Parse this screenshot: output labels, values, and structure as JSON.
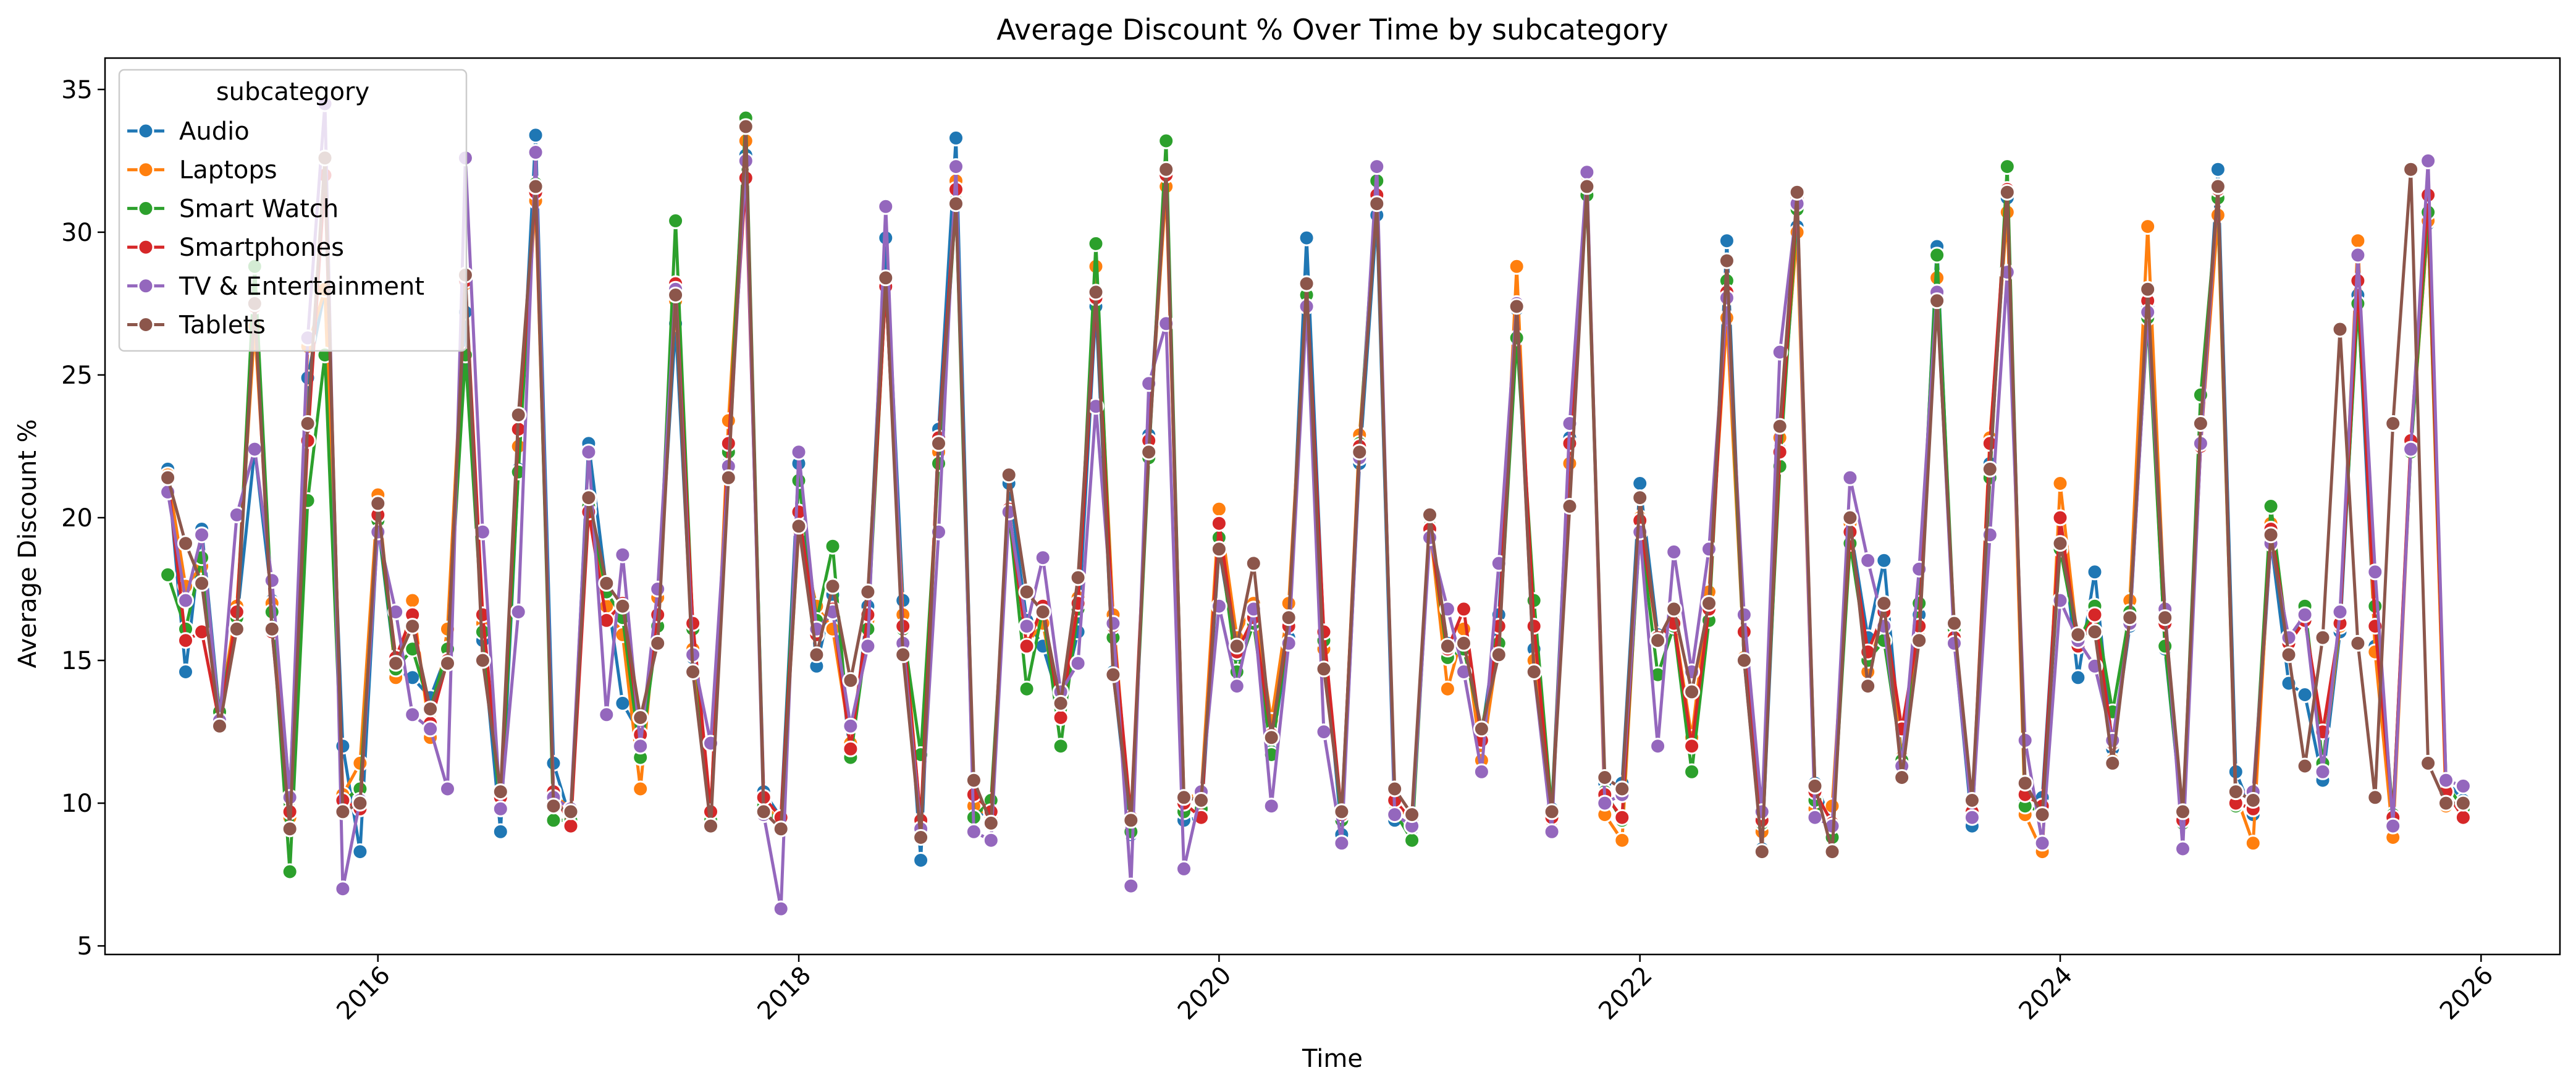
{
  "chart_data": {
    "type": "line",
    "title": "Average Discount % Over Time by subcategory",
    "xlabel": "Time",
    "ylabel": "Average Discount %",
    "xlim": [
      "2014-09-14",
      "2026-05-18"
    ],
    "ylim": [
      4.7,
      36.1
    ],
    "x_ticks": [
      "2016",
      "2018",
      "2020",
      "2022",
      "2024",
      "2026"
    ],
    "x_tick_dates": [
      "2016-01-01",
      "2018-01-01",
      "2020-01-01",
      "2022-01-01",
      "2024-01-01",
      "2026-01-01"
    ],
    "y_ticks": [
      5,
      10,
      15,
      20,
      25,
      30,
      35
    ],
    "grid": false,
    "legend": {
      "title": "subcategory",
      "position": "top-left"
    },
    "x_start": "2015-01",
    "x_interval": "monthly",
    "series": [
      {
        "name": "Audio",
        "color": "#1f77b4",
        "values": [
          21.7,
          14.6,
          19.6,
          13.1,
          16.4,
          22.4,
          17.1,
          10.3,
          24.9,
          28.0,
          12.0,
          8.3,
          19.8,
          14.6,
          14.4,
          13.7,
          15.3,
          27.2,
          15.7,
          9.0,
          21.7,
          33.4,
          11.4,
          9.4,
          22.6,
          17.5,
          13.5,
          12.4,
          16.6,
          26.8,
          15.1,
          9.5,
          21.9,
          32.7,
          10.4,
          9.5,
          21.9,
          14.8,
          17.3,
          11.6,
          16.9,
          29.8,
          17.1,
          8.0,
          23.1,
          33.3,
          10.0,
          9.3,
          21.2,
          16.4,
          15.5,
          13.4,
          16.0,
          27.4,
          14.6,
          8.9,
          22.9,
          32.1,
          9.4,
          9.5,
          18.9,
          15.2,
          16.5,
          11.8,
          15.8,
          29.8,
          15.8,
          8.9,
          21.9,
          30.6,
          9.4,
          9.1,
          19.5,
          15.6,
          15.6,
          12.4,
          16.6,
          27.3,
          15.4,
          9.8,
          22.8,
          31.5,
          10.7,
          10.7,
          21.2,
          15.9,
          16.1,
          12.0,
          16.4,
          29.7,
          15.0,
          8.4,
          22.4,
          30.2,
          10.7,
          9.3,
          19.7,
          15.8,
          18.5,
          11.5,
          16.6,
          29.5,
          15.7,
          9.2,
          21.9,
          31.2,
          10.1,
          10.2,
          20.0,
          14.4,
          18.1,
          11.9,
          16.2,
          27.4,
          15.4,
          9.3,
          22.6,
          32.2,
          11.1,
          9.6,
          19.2,
          14.2,
          13.8,
          10.8,
          16.0,
          27.8,
          15.5,
          9.5,
          22.6,
          30.3,
          10.8,
          10.1
        ]
      },
      {
        "name": "Laptops",
        "color": "#ff7f0e",
        "values": [
          21.5,
          17.6,
          18.3,
          13.2,
          16.9,
          26.7,
          17.0,
          9.5,
          26.0,
          28.0,
          10.3,
          11.4,
          20.8,
          14.4,
          17.1,
          12.3,
          16.1,
          28.2,
          16.3,
          10.2,
          22.5,
          31.1,
          10.3,
          9.8,
          20.6,
          16.9,
          15.9,
          10.5,
          17.2,
          27.6,
          15.4,
          9.6,
          23.4,
          33.2,
          10.0,
          9.3,
          19.6,
          16.9,
          16.1,
          12.1,
          16.4,
          28.1,
          16.6,
          9.3,
          22.3,
          31.8,
          9.9,
          9.5,
          20.3,
          15.6,
          16.3,
          13.0,
          17.2,
          28.8,
          16.6,
          9.0,
          22.6,
          31.6,
          10.2,
          10.3,
          20.3,
          15.8,
          17.0,
          12.9,
          17.0,
          27.8,
          15.4,
          9.4,
          22.9,
          31.0,
          10.1,
          9.3,
          19.7,
          14.0,
          16.1,
          11.5,
          15.6,
          28.8,
          15.0,
          9.4,
          21.9,
          32.0,
          9.6,
          8.7,
          20.0,
          15.7,
          16.4,
          12.3,
          17.4,
          27.0,
          15.1,
          9.0,
          22.8,
          30.0,
          9.8,
          9.9,
          19.8,
          14.6,
          16.7,
          11.6,
          15.8,
          28.4,
          16.0,
          9.7,
          22.8,
          30.7,
          9.6,
          8.3,
          21.2,
          15.5,
          16.6,
          11.5,
          17.1,
          30.2,
          16.4,
          9.4,
          22.6,
          30.6,
          10.3,
          8.6,
          19.8,
          15.4,
          16.7,
          11.3,
          16.2,
          29.7,
          15.3,
          8.8,
          22.4,
          30.4,
          9.9,
          10.0
        ]
      },
      {
        "name": "Smart Watch",
        "color": "#2ca02c",
        "values": [
          18.0,
          16.1,
          18.6,
          13.2,
          16.5,
          28.8,
          16.7,
          7.6,
          20.6,
          25.7,
          10.1,
          10.5,
          19.9,
          14.7,
          15.4,
          13.3,
          15.4,
          25.7,
          16.0,
          9.8,
          21.6,
          31.7,
          9.4,
          9.4,
          20.4,
          17.4,
          16.5,
          11.6,
          16.2,
          30.4,
          16.1,
          9.4,
          22.3,
          34.0,
          9.9,
          9.2,
          21.3,
          16.4,
          19.0,
          11.6,
          16.1,
          28.2,
          16.1,
          11.7,
          21.9,
          31.1,
          9.5,
          10.1,
          20.2,
          14.0,
          16.8,
          12.0,
          16.8,
          29.6,
          15.8,
          9.0,
          22.1,
          33.2,
          9.7,
          9.8,
          19.3,
          14.6,
          16.3,
          11.7,
          16.2,
          27.8,
          15.7,
          9.4,
          22.6,
          31.8,
          9.7,
          8.7,
          19.7,
          15.1,
          15.4,
          12.6,
          15.6,
          26.3,
          17.1,
          9.7,
          22.6,
          31.3,
          10.4,
          9.4,
          19.6,
          14.5,
          16.2,
          11.1,
          16.4,
          28.3,
          15.0,
          9.3,
          21.8,
          30.8,
          10.1,
          8.8,
          19.1,
          15.0,
          15.7,
          11.5,
          17.0,
          29.2,
          16.1,
          9.6,
          21.4,
          32.3,
          9.9,
          9.7,
          18.9,
          15.6,
          16.9,
          13.2,
          16.7,
          27.0,
          15.5,
          9.3,
          24.3,
          31.2,
          9.9,
          9.9,
          20.4,
          15.3,
          16.9,
          11.4,
          16.4,
          27.5,
          16.9,
          9.6,
          22.3,
          30.7,
          10.7,
          9.8
        ]
      },
      {
        "name": "Smartphones",
        "color": "#d62728",
        "values": [
          21.4,
          15.7,
          16.0,
          12.8,
          16.7,
          27.4,
          16.0,
          9.7,
          22.7,
          32.0,
          10.1,
          9.8,
          20.1,
          15.1,
          16.6,
          12.8,
          15.0,
          28.3,
          16.6,
          10.2,
          23.1,
          31.4,
          10.4,
          9.2,
          20.2,
          16.4,
          17.0,
          12.4,
          16.6,
          28.2,
          16.3,
          9.7,
          22.6,
          31.9,
          10.2,
          9.5,
          20.2,
          15.9,
          16.8,
          11.9,
          16.6,
          28.1,
          16.2,
          9.4,
          22.8,
          31.5,
          10.3,
          9.7,
          20.3,
          15.5,
          16.9,
          13.0,
          17.0,
          27.7,
          16.2,
          9.5,
          22.7,
          32.0,
          10.0,
          9.5,
          19.8,
          15.3,
          16.5,
          12.4,
          16.2,
          28.2,
          16.0,
          9.6,
          22.5,
          31.3,
          10.1,
          9.4,
          19.6,
          15.4,
          16.8,
          12.2,
          16.2,
          27.5,
          16.2,
          9.5,
          22.6,
          31.6,
          10.3,
          9.5,
          19.9,
          15.8,
          16.3,
          12.0,
          16.8,
          27.9,
          16.0,
          9.4,
          22.3,
          31.2,
          10.4,
          9.3,
          19.5,
          15.3,
          16.7,
          12.6,
          16.2,
          27.9,
          15.8,
          9.7,
          22.6,
          31.5,
          10.3,
          9.9,
          20.0,
          15.5,
          16.6,
          12.1,
          16.4,
          27.6,
          16.3,
          9.4,
          22.5,
          31.5,
          10.0,
          9.8,
          19.6,
          15.6,
          16.4,
          12.5,
          16.3,
          28.3,
          16.2,
          9.5,
          22.7,
          31.3,
          10.4,
          9.5
        ]
      },
      {
        "name": "TV & Entertainment",
        "color": "#9467bd",
        "values": [
          20.9,
          17.1,
          19.4,
          12.9,
          20.1,
          22.4,
          17.8,
          10.2,
          26.3,
          34.5,
          7.0,
          10.1,
          19.5,
          16.7,
          13.1,
          12.6,
          10.5,
          32.6,
          19.5,
          9.8,
          16.7,
          32.8,
          10.2,
          9.8,
          22.3,
          13.1,
          18.7,
          12.0,
          17.5,
          28.0,
          15.2,
          12.1,
          21.8,
          32.5,
          9.6,
          6.3,
          22.3,
          16.1,
          16.7,
          12.7,
          15.5,
          30.9,
          15.6,
          9.1,
          19.5,
          32.3,
          9.0,
          8.7,
          20.2,
          16.2,
          18.6,
          13.9,
          14.9,
          23.9,
          16.3,
          7.1,
          24.7,
          26.8,
          7.7,
          10.4,
          16.9,
          14.1,
          16.8,
          9.9,
          15.6,
          27.4,
          12.5,
          8.6,
          22.1,
          32.3,
          9.6,
          9.2,
          19.3,
          16.8,
          14.6,
          11.1,
          18.4,
          27.5,
          14.6,
          9.0,
          23.3,
          32.1,
          10.0,
          10.3,
          19.5,
          12.0,
          18.8,
          14.6,
          18.9,
          27.7,
          16.6,
          9.7,
          25.8,
          31.0,
          9.5,
          9.2,
          21.4,
          18.5,
          16.2,
          11.3,
          18.2,
          27.9,
          15.6,
          9.5,
          19.4,
          28.6,
          12.2,
          8.6,
          17.1,
          15.7,
          14.8,
          12.2,
          16.3,
          27.2,
          16.8,
          8.4,
          22.6,
          31.6,
          10.4,
          10.4,
          19.1,
          15.8,
          16.6,
          11.1,
          16.7,
          29.2,
          18.1,
          9.2,
          22.4,
          32.5,
          10.8,
          10.6
        ]
      },
      {
        "name": "Tablets",
        "color": "#8c564b",
        "values": [
          21.4,
          19.1,
          17.7,
          12.7,
          16.1,
          27.5,
          16.1,
          9.1,
          23.3,
          32.6,
          9.7,
          10.0,
          20.5,
          14.9,
          16.2,
          13.3,
          14.9,
          28.5,
          15.0,
          10.4,
          23.6,
          31.6,
          9.9,
          9.7,
          20.7,
          17.7,
          16.9,
          13.0,
          15.6,
          27.8,
          14.6,
          9.2,
          21.4,
          33.7,
          9.7,
          9.1,
          19.7,
          15.2,
          17.6,
          14.3,
          17.4,
          28.4,
          15.2,
          8.8,
          22.6,
          31.0,
          10.8,
          9.3,
          21.5,
          17.4,
          16.7,
          13.5,
          17.9,
          27.9,
          14.5,
          9.4,
          22.3,
          32.2,
          10.2,
          10.1,
          18.9,
          15.5,
          18.4,
          12.3,
          16.5,
          28.2,
          14.7,
          9.7,
          22.3,
          31.0,
          10.5,
          9.6,
          20.1,
          15.5,
          15.6,
          12.6,
          15.2,
          27.4,
          14.6,
          9.7,
          20.4,
          31.6,
          10.9,
          10.5,
          20.7,
          15.7,
          16.8,
          13.9,
          17.0,
          29.0,
          15.0,
          8.3,
          23.2,
          31.4,
          10.6,
          8.3,
          20.0,
          14.1,
          17.0,
          10.9,
          15.7,
          27.6,
          16.3,
          10.1,
          21.7,
          31.4,
          10.7,
          9.6,
          19.1,
          15.9,
          16.0,
          11.4,
          16.5,
          28.0,
          16.5,
          9.7,
          23.3,
          31.6,
          10.4,
          10.1,
          19.4,
          15.2,
          11.3,
          15.8,
          26.6,
          15.6,
          10.2,
          23.3,
          32.2,
          11.4,
          10.0,
          10.0
        ]
      }
    ]
  }
}
